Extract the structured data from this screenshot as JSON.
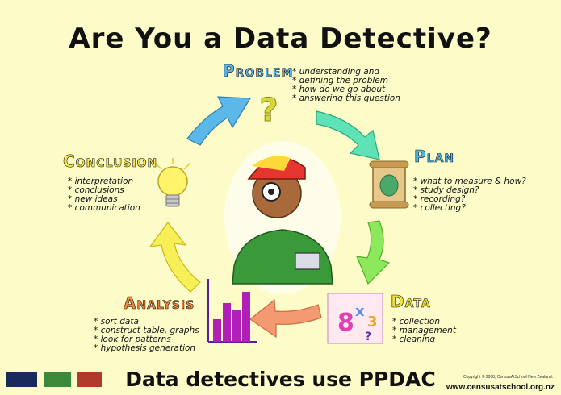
{
  "title": "Are You a  Data Detective?",
  "footer": {
    "tagline": "Data detectives use PPDAC",
    "url": "www.censusatschool.org.nz",
    "copyright": "Copyright © 2008, CensusAtSchool New Zealand."
  },
  "stages": {
    "problem": {
      "title": "Problem",
      "color": "#5ab4e6",
      "bullets": [
        "understanding and",
        "defining the problem",
        "how do we go about",
        "answering this question"
      ]
    },
    "plan": {
      "title": "Plan",
      "color": "#4fb8e8",
      "bullets": [
        "what to measure & how?",
        "study design?",
        "recording?",
        "collecting?"
      ]
    },
    "data": {
      "title": "Data",
      "color": "#f0e033",
      "bullets": [
        "collection",
        "management",
        "cleaning"
      ]
    },
    "analysis": {
      "title": "Analysis",
      "color": "#f2893a",
      "bullets": [
        "sort data",
        "construct table, graphs",
        "look for patterns",
        "hypothesis generation"
      ]
    },
    "conclusion": {
      "title": "Conclusion",
      "color": "#f6e94a",
      "bullets": [
        "interpretation",
        "conclusions",
        "new ideas",
        "communication"
      ]
    }
  },
  "icons": {
    "problem": "question-mark-icon",
    "plan": "map-scroll-icon",
    "data": "numbers-icon",
    "analysis": "bar-chart-icon",
    "conclusion": "light-bulb-icon",
    "center": "detective-boy-illustration"
  },
  "arrow_colors": {
    "conclusion_to_problem": "#5bb8e8",
    "problem_to_plan": "#5fe3b6",
    "plan_to_data": "#8ee85c",
    "data_to_analysis": "#f39a72",
    "analysis_to_conclusion": "#f6ef55"
  }
}
